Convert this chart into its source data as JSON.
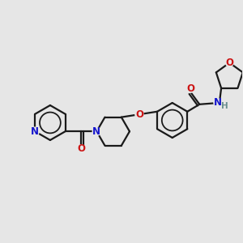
{
  "bg_color": "#e6e6e6",
  "bond_color": "#1a1a1a",
  "bond_width": 1.6,
  "N_color": "#1414cc",
  "O_color": "#cc1414",
  "H_color": "#6a9090",
  "font_size": 8.5,
  "fig_size": [
    3.0,
    3.0
  ],
  "dpi": 100,
  "xlim": [
    0,
    10
  ],
  "ylim": [
    0,
    10
  ]
}
